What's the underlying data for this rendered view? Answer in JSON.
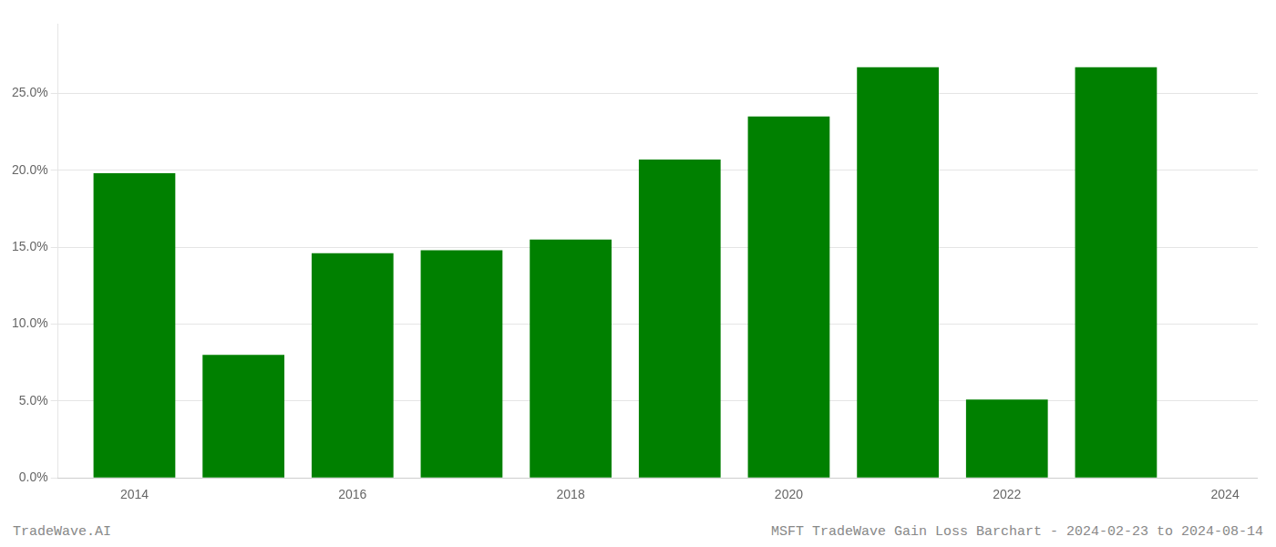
{
  "chart_data": {
    "type": "bar",
    "x": [
      2014,
      2015,
      2016,
      2017,
      2018,
      2019,
      2020,
      2021,
      2022,
      2023
    ],
    "values": [
      0.198,
      0.08,
      0.146,
      0.148,
      0.155,
      0.207,
      0.235,
      0.267,
      0.051,
      0.267
    ],
    "color": "#008000",
    "xlim": [
      2013.3,
      2024.3
    ],
    "xticks": [
      2014,
      2016,
      2018,
      2020,
      2022,
      2024
    ],
    "ylim": [
      0.0,
      0.295
    ],
    "yticks": [
      {
        "value": 0.0,
        "label": "0.0%"
      },
      {
        "value": 0.05,
        "label": "5.0%"
      },
      {
        "value": 0.1,
        "label": "10.0%"
      },
      {
        "value": 0.15,
        "label": "15.0%"
      },
      {
        "value": 0.2,
        "label": "20.0%"
      },
      {
        "value": 0.25,
        "label": "25.0%"
      }
    ],
    "grid": true,
    "annotations": [
      "TradeWave.AI",
      "MSFT TradeWave Gain Loss Barchart - 2024-02-23 to 2024-08-14"
    ]
  }
}
